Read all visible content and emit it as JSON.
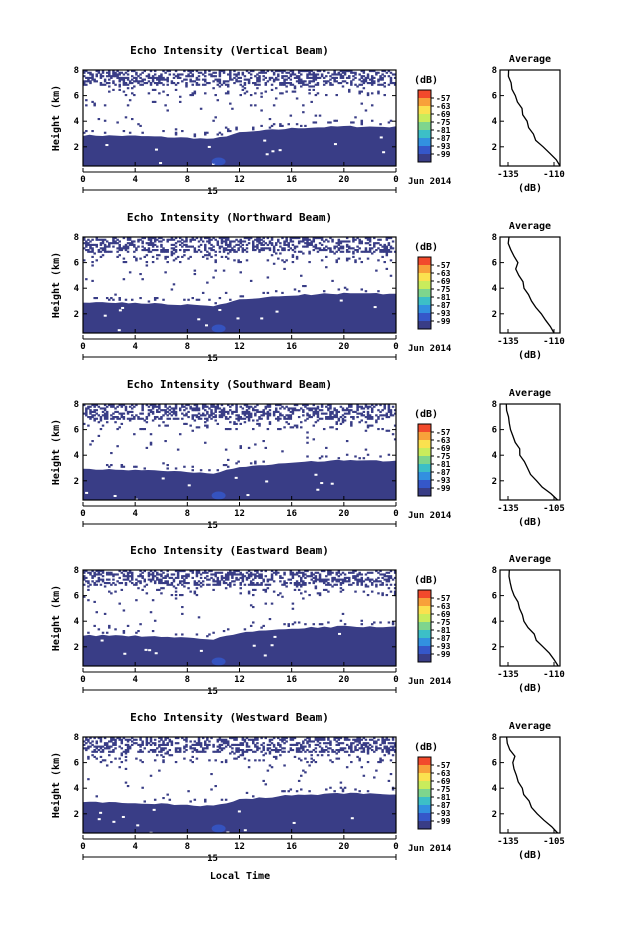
{
  "figure": {
    "xlabel": "Local Time",
    "date_label": "Jun 2014",
    "day_label": "15"
  },
  "colorbar": {
    "unit": "(dB)",
    "ticks": [
      "-57",
      "-63",
      "-69",
      "-75",
      "-81",
      "-87",
      "-93",
      "-99"
    ],
    "colors": [
      "#f24a2c",
      "#f8a13a",
      "#fbe14f",
      "#c9ec5c",
      "#7ed58d",
      "#3cbfc7",
      "#3290e0",
      "#3557c9",
      "#393d86"
    ]
  },
  "chart_data": [
    {
      "type": "heatmap",
      "title": "Echo Intensity (Vertical Beam)",
      "ylabel": "Height (km)",
      "x_ticks": [
        "0",
        "4",
        "8",
        "12",
        "16",
        "20",
        "0"
      ],
      "y_ticks": [
        "2",
        "4",
        "6",
        "8"
      ],
      "xlim": [
        0,
        24
      ],
      "ylim": [
        0.5,
        8
      ],
      "boundary_height": {
        "hours": [
          0,
          4,
          8,
          10,
          12,
          16,
          20,
          24
        ],
        "km": [
          2.9,
          2.85,
          2.7,
          2.6,
          3.1,
          3.45,
          3.6,
          3.55
        ]
      },
      "cell_color_dB": -99,
      "profile": {
        "title": "Average",
        "xlabel": "(dB)",
        "x_ticks": [
          "-135",
          "-110"
        ],
        "y_ticks": [
          "2",
          "4",
          "6",
          "8"
        ],
        "xlim": [
          -140,
          -106
        ],
        "height_km": [
          0.5,
          1.0,
          1.5,
          2.0,
          2.5,
          3.0,
          3.5,
          4.0,
          4.5,
          5.0,
          5.5,
          6.0,
          6.5,
          7.0,
          7.5,
          8.0
        ],
        "power_dB": [
          -106,
          -108,
          -112,
          -116,
          -120,
          -121,
          -124,
          -125,
          -127,
          -128,
          -130,
          -131,
          -133,
          -134,
          -135,
          -135
        ]
      }
    },
    {
      "type": "heatmap",
      "title": "Echo Intensity (Northward Beam)",
      "ylabel": "Height (km)",
      "x_ticks": [
        "0",
        "4",
        "8",
        "12",
        "16",
        "20",
        "0"
      ],
      "y_ticks": [
        "2",
        "4",
        "6",
        "8"
      ],
      "xlim": [
        0,
        24
      ],
      "ylim": [
        0.5,
        8
      ],
      "boundary_height": {
        "hours": [
          0,
          4,
          8,
          10,
          12,
          16,
          20,
          24
        ],
        "km": [
          2.9,
          2.85,
          2.7,
          2.6,
          3.1,
          3.45,
          3.6,
          3.55
        ]
      },
      "cell_color_dB": -99,
      "profile": {
        "title": "Average",
        "xlabel": "(dB)",
        "x_ticks": [
          "-135",
          "-110"
        ],
        "y_ticks": [
          "2",
          "4",
          "6",
          "8"
        ],
        "xlim": [
          -140,
          -106
        ],
        "height_km": [
          0.5,
          1.0,
          1.5,
          2.0,
          2.5,
          3.0,
          3.5,
          4.0,
          4.5,
          5.0,
          5.5,
          6.0,
          6.5,
          7.0,
          7.5,
          8.0
        ],
        "power_dB": [
          -109,
          -111,
          -114,
          -117,
          -120,
          -122,
          -124,
          -126,
          -127,
          -129,
          -131,
          -130,
          -132,
          -134,
          -135,
          -135
        ]
      }
    },
    {
      "type": "heatmap",
      "title": "Echo Intensity (Southward Beam)",
      "ylabel": "Height (km)",
      "x_ticks": [
        "0",
        "4",
        "8",
        "12",
        "16",
        "20",
        "0"
      ],
      "y_ticks": [
        "2",
        "4",
        "6",
        "8"
      ],
      "xlim": [
        0,
        24
      ],
      "ylim": [
        0.5,
        8
      ],
      "boundary_height": {
        "hours": [
          0,
          4,
          8,
          10,
          12,
          16,
          20,
          24
        ],
        "km": [
          2.9,
          2.85,
          2.7,
          2.6,
          3.1,
          3.45,
          3.6,
          3.55
        ]
      },
      "cell_color_dB": -99,
      "profile": {
        "title": "Average",
        "xlabel": "(dB)",
        "x_ticks": [
          "-135",
          "-105"
        ],
        "y_ticks": [
          "2",
          "4",
          "6",
          "8"
        ],
        "xlim": [
          -140,
          -102
        ],
        "height_km": [
          0.5,
          1.0,
          1.5,
          2.0,
          2.5,
          3.0,
          3.5,
          4.0,
          4.5,
          5.0,
          5.5,
          6.0,
          6.5,
          7.0,
          7.5,
          8.0
        ],
        "power_dB": [
          -104,
          -108,
          -113,
          -117,
          -121,
          -123,
          -125,
          -127,
          -128,
          -130,
          -132,
          -133,
          -134,
          -135,
          -136,
          -136
        ]
      }
    },
    {
      "type": "heatmap",
      "title": "Echo Intensity (Eastward Beam)",
      "ylabel": "Height (km)",
      "x_ticks": [
        "0",
        "4",
        "8",
        "12",
        "16",
        "20",
        "0"
      ],
      "y_ticks": [
        "2",
        "4",
        "6",
        "8"
      ],
      "xlim": [
        0,
        24
      ],
      "ylim": [
        0.5,
        8
      ],
      "boundary_height": {
        "hours": [
          0,
          4,
          8,
          10,
          12,
          16,
          20,
          24
        ],
        "km": [
          2.9,
          2.85,
          2.7,
          2.6,
          3.1,
          3.45,
          3.6,
          3.55
        ]
      },
      "cell_color_dB": -99,
      "profile": {
        "title": "Average",
        "xlabel": "(dB)",
        "x_ticks": [
          "-135",
          "-110"
        ],
        "y_ticks": [
          "2",
          "4",
          "6",
          "8"
        ],
        "xlim": [
          -140,
          -106
        ],
        "height_km": [
          0.5,
          1.0,
          1.5,
          2.0,
          2.5,
          3.0,
          3.5,
          4.0,
          4.5,
          5.0,
          5.5,
          6.0,
          6.5,
          7.0,
          7.5,
          8.0
        ],
        "power_dB": [
          -107,
          -109,
          -112,
          -116,
          -119,
          -121,
          -124,
          -126,
          -127,
          -129,
          -130,
          -132,
          -133,
          -134,
          -135,
          -135
        ]
      }
    },
    {
      "type": "heatmap",
      "title": "Echo Intensity (Westward Beam)",
      "ylabel": "Height (km)",
      "x_ticks": [
        "0",
        "4",
        "8",
        "12",
        "16",
        "20",
        "0"
      ],
      "y_ticks": [
        "2",
        "4",
        "6",
        "8"
      ],
      "xlim": [
        0,
        24
      ],
      "ylim": [
        0.5,
        8
      ],
      "boundary_height": {
        "hours": [
          0,
          4,
          8,
          10,
          12,
          16,
          20,
          24
        ],
        "km": [
          2.9,
          2.85,
          2.7,
          2.6,
          3.1,
          3.45,
          3.6,
          3.55
        ]
      },
      "cell_color_dB": -99,
      "profile": {
        "title": "Average",
        "xlabel": "(dB)",
        "x_ticks": [
          "-135",
          "-105"
        ],
        "y_ticks": [
          "2",
          "4",
          "6",
          "8"
        ],
        "xlim": [
          -140,
          -102
        ],
        "height_km": [
          0.5,
          1.0,
          1.5,
          2.0,
          2.5,
          3.0,
          3.5,
          4.0,
          4.5,
          5.0,
          5.5,
          6.0,
          6.5,
          7.0,
          7.5,
          8.0
        ],
        "power_dB": [
          -104,
          -107,
          -112,
          -116,
          -120,
          -122,
          -125,
          -126,
          -128,
          -130,
          -131,
          -132,
          -131,
          -134,
          -135,
          -136
        ]
      }
    }
  ]
}
